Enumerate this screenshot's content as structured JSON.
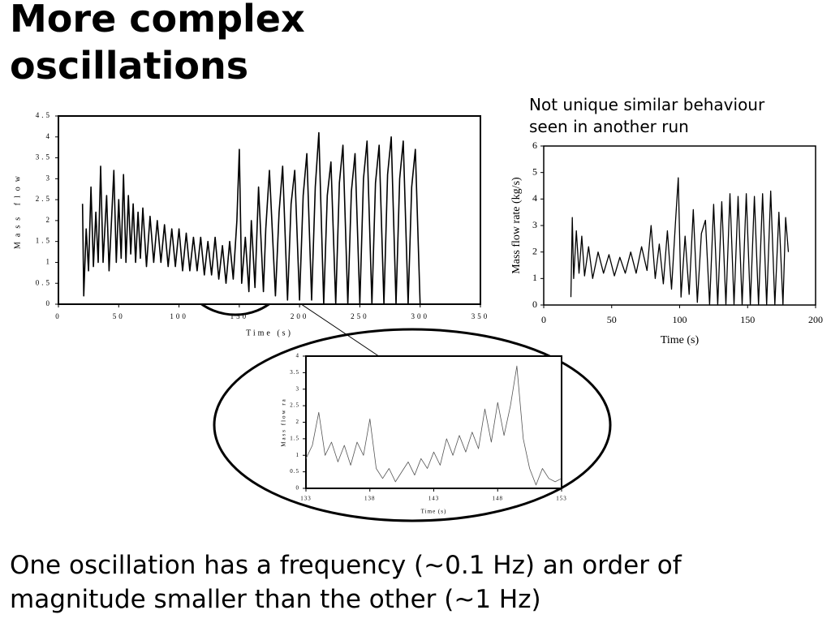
{
  "title": "More complex oscillations",
  "caption": "One oscillation has a frequency (~0.1 Hz) an order of magnitude smaller than the other (~1 Hz)",
  "chart_data": [
    {
      "type": "line",
      "xlabel": "Time (s)",
      "ylabel": "Mass flow",
      "color": "#000000",
      "xlim": [
        0,
        350
      ],
      "xticks": [
        0,
        50,
        100,
        150,
        200,
        250,
        300,
        350
      ],
      "ylim": [
        0,
        4.5
      ],
      "yticks": [
        0,
        0.5,
        1,
        1.5,
        2,
        2.5,
        3,
        3.5,
        4,
        4.5
      ],
      "x": [
        20,
        21,
        23,
        25,
        27,
        29,
        31,
        33,
        35,
        37,
        40,
        42,
        44,
        46,
        48,
        50,
        52,
        54,
        56,
        58,
        60,
        62,
        64,
        66,
        68,
        70,
        73,
        76,
        79,
        82,
        85,
        88,
        91,
        94,
        97,
        100,
        103,
        106,
        109,
        112,
        115,
        118,
        121,
        124,
        127,
        130,
        133,
        136,
        139,
        142,
        145,
        148,
        150,
        152,
        155,
        158,
        160,
        163,
        166,
        170,
        172,
        175,
        180,
        183,
        186,
        190,
        193,
        196,
        200,
        203,
        206,
        210,
        213,
        216,
        220,
        223,
        226,
        230,
        233,
        236,
        240,
        243,
        246,
        250,
        253,
        256,
        260,
        263,
        266,
        270,
        273,
        276,
        280,
        283,
        286,
        290,
        293,
        296,
        300
      ],
      "values": [
        2.4,
        0.2,
        1.8,
        0.8,
        2.8,
        0.9,
        2.2,
        1.0,
        3.3,
        1.0,
        2.6,
        0.8,
        2.0,
        3.2,
        1.0,
        2.5,
        1.1,
        3.1,
        1.0,
        2.6,
        1.2,
        2.4,
        1.0,
        2.2,
        1.1,
        2.3,
        0.9,
        2.1,
        1.0,
        2.0,
        1.0,
        1.9,
        0.9,
        1.8,
        0.9,
        1.8,
        0.8,
        1.7,
        0.8,
        1.6,
        0.8,
        1.6,
        0.7,
        1.5,
        0.7,
        1.6,
        0.6,
        1.4,
        0.5,
        1.5,
        0.6,
        2.0,
        3.7,
        0.5,
        1.6,
        0.3,
        2.0,
        0.4,
        2.8,
        0.3,
        1.8,
        3.2,
        0.2,
        2.2,
        3.3,
        0.1,
        2.4,
        3.2,
        0.1,
        2.6,
        3.6,
        0.1,
        2.8,
        4.1,
        0.0,
        2.6,
        3.4,
        0.0,
        2.9,
        3.8,
        0.0,
        2.7,
        3.6,
        0.0,
        3.0,
        3.9,
        0.0,
        2.9,
        3.8,
        0.0,
        3.1,
        4.0,
        0.0,
        3.0,
        3.9,
        0.0,
        2.8,
        3.7,
        0.0
      ]
    },
    {
      "type": "line",
      "annotation": "Not unique similar behaviour seen in another run",
      "xlabel": "Time (s)",
      "ylabel": "Mass flow rate (kg/s)",
      "color": "#000000",
      "xlim": [
        0,
        200
      ],
      "xticks": [
        0,
        50,
        100,
        150,
        200
      ],
      "ylim": [
        0,
        6
      ],
      "yticks": [
        0,
        1,
        2,
        3,
        4,
        5,
        6
      ],
      "x": [
        20,
        21,
        22,
        24,
        26,
        28,
        30,
        33,
        36,
        40,
        44,
        48,
        52,
        56,
        60,
        64,
        68,
        72,
        76,
        79,
        82,
        85,
        88,
        91,
        94,
        97,
        99,
        101,
        104,
        107,
        110,
        113,
        116,
        119,
        122,
        125,
        128,
        131,
        134,
        137,
        140,
        143,
        146,
        149,
        152,
        155,
        158,
        161,
        164,
        167,
        170,
        173,
        176,
        178,
        180
      ],
      "values": [
        0.3,
        3.3,
        1.0,
        2.8,
        1.2,
        2.6,
        1.1,
        2.2,
        1.0,
        2.0,
        1.2,
        1.9,
        1.1,
        1.8,
        1.2,
        2.0,
        1.2,
        2.2,
        1.3,
        3.0,
        1.0,
        2.3,
        0.8,
        2.8,
        0.6,
        3.2,
        4.8,
        0.3,
        2.6,
        0.4,
        3.6,
        0.1,
        2.7,
        3.2,
        0.0,
        3.8,
        0.0,
        3.9,
        0.0,
        4.2,
        0.0,
        4.1,
        0.0,
        4.2,
        0.0,
        4.1,
        0.0,
        4.2,
        0.0,
        4.3,
        0.0,
        3.5,
        0.0,
        3.3,
        2.0
      ]
    },
    {
      "type": "line",
      "xlabel": "Time (s)",
      "ylabel": "Mass flow ra",
      "color": "#555555",
      "xlim": [
        133,
        153
      ],
      "xticks": [
        133,
        138,
        143,
        148,
        153
      ],
      "ylim": [
        0,
        4
      ],
      "yticks": [
        0,
        0.5,
        1,
        1.5,
        2,
        2.5,
        3,
        3.5,
        4
      ],
      "x": [
        133,
        133.5,
        134,
        134.5,
        135,
        135.5,
        136,
        136.5,
        137,
        137.5,
        138,
        138.5,
        139,
        139.5,
        140,
        140.5,
        141,
        141.5,
        142,
        142.5,
        143,
        143.5,
        144,
        144.5,
        145,
        145.5,
        146,
        146.5,
        147,
        147.5,
        148,
        148.5,
        149,
        149.5,
        150,
        150.5,
        151,
        151.5,
        152,
        152.5,
        153
      ],
      "values": [
        0.9,
        1.3,
        2.3,
        1.0,
        1.4,
        0.8,
        1.3,
        0.7,
        1.4,
        1.0,
        2.1,
        0.6,
        0.3,
        0.6,
        0.2,
        0.5,
        0.8,
        0.4,
        0.9,
        0.6,
        1.1,
        0.7,
        1.5,
        1.0,
        1.6,
        1.1,
        1.7,
        1.2,
        2.4,
        1.4,
        2.6,
        1.6,
        2.5,
        3.7,
        1.5,
        0.6,
        0.1,
        0.6,
        0.3,
        0.2,
        0.3
      ]
    }
  ]
}
